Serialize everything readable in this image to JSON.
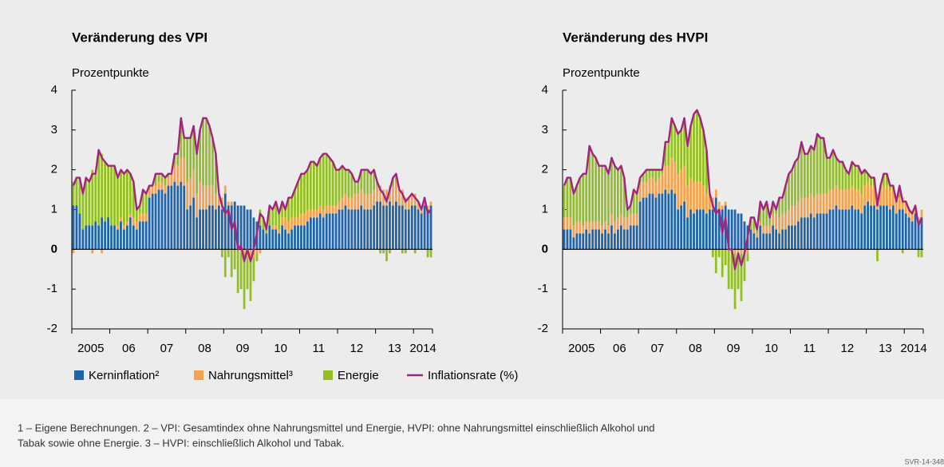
{
  "chart_data": [
    {
      "type": "bar",
      "title": "Veränderung des VPI",
      "ylabel": "Prozentpunkte",
      "xlim": [
        2005,
        2014.5
      ],
      "ylim": [
        -2,
        4
      ],
      "yticks": [
        -2,
        -1,
        0,
        1,
        2,
        3,
        4
      ],
      "xticks": [
        {
          "value": 2005.5,
          "label": "2005"
        },
        {
          "value": 2006.5,
          "label": "06"
        },
        {
          "value": 2007.5,
          "label": "07"
        },
        {
          "value": 2008.5,
          "label": "08"
        },
        {
          "value": 2009.5,
          "label": "09"
        },
        {
          "value": 2010.5,
          "label": "10"
        },
        {
          "value": 2011.5,
          "label": "11"
        },
        {
          "value": 2012.5,
          "label": "12"
        },
        {
          "value": 2013.5,
          "label": "13"
        },
        {
          "value": 2014.25,
          "label": "2014"
        }
      ],
      "series": [
        {
          "name": "Kerninflation²",
          "color": "#1f64a8",
          "values": [
            1.1,
            1.1,
            0.9,
            0.5,
            0.6,
            0.6,
            0.6,
            0.7,
            0.6,
            0.8,
            0.7,
            0.8,
            0.6,
            0.6,
            0.5,
            0.7,
            0.5,
            0.6,
            0.8,
            0.6,
            0.5,
            0.7,
            0.7,
            0.7,
            1.3,
            1.4,
            1.4,
            1.5,
            1.5,
            1.4,
            1.6,
            1.6,
            1.7,
            1.6,
            1.7,
            1.6,
            1.0,
            1.1,
            1.3,
            0.8,
            1.0,
            1.0,
            1.0,
            1.1,
            1.1,
            1.0,
            1.1,
            1.0,
            1.4,
            1.1,
            1.1,
            1.2,
            1.1,
            1.1,
            1.1,
            1.0,
            1.0,
            0.8,
            0.7,
            0.6,
            0.5,
            0.4,
            0.6,
            0.5,
            0.5,
            0.4,
            0.6,
            0.5,
            0.4,
            0.5,
            0.6,
            0.6,
            0.6,
            0.6,
            0.7,
            0.8,
            0.8,
            0.8,
            0.9,
            0.8,
            0.9,
            0.9,
            0.9,
            0.9,
            1.0,
            1.0,
            1.1,
            1.0,
            1.0,
            1.0,
            1.0,
            1.1,
            1.0,
            1.0,
            1.0,
            1.1,
            1.2,
            1.2,
            1.1,
            1.1,
            1.2,
            1.1,
            1.2,
            1.1,
            1.1,
            1.0,
            1.0,
            1.1,
            1.1,
            1.0,
            0.9,
            1.1,
            1.0,
            1.1
          ]
        },
        {
          "name": "Nahrungsmittel³",
          "color": "#f7a24a",
          "values": [
            -0.1,
            0.0,
            0.0,
            0.0,
            0.0,
            0.0,
            -0.1,
            0.0,
            0.0,
            -0.1,
            0.0,
            0.0,
            0.0,
            0.0,
            0.1,
            0.1,
            0.1,
            0.1,
            0.1,
            0.2,
            0.2,
            0.2,
            0.2,
            0.2,
            0.2,
            0.2,
            0.2,
            0.2,
            0.2,
            0.2,
            0.2,
            0.3,
            0.4,
            0.5,
            0.6,
            0.7,
            0.7,
            0.7,
            0.7,
            0.6,
            0.7,
            0.6,
            0.6,
            0.5,
            0.5,
            0.4,
            0.3,
            0.3,
            0.2,
            0.1,
            0.1,
            0.0,
            0.0,
            -0.1,
            -0.1,
            -0.2,
            -0.2,
            -0.2,
            -0.1,
            -0.1,
            0.0,
            0.0,
            0.0,
            0.1,
            0.1,
            0.1,
            0.2,
            0.3,
            0.3,
            0.3,
            0.2,
            0.2,
            0.3,
            0.3,
            0.3,
            0.2,
            0.2,
            0.2,
            0.2,
            0.2,
            0.2,
            0.2,
            0.2,
            0.2,
            0.2,
            0.3,
            0.3,
            0.3,
            0.3,
            0.4,
            0.4,
            0.4,
            0.4,
            0.4,
            0.4,
            0.4,
            0.4,
            0.4,
            0.4,
            0.4,
            0.4,
            0.5,
            0.5,
            0.4,
            0.4,
            0.3,
            0.3,
            0.3,
            0.3,
            0.2,
            0.1,
            0.1,
            0.1,
            0.1
          ]
        },
        {
          "name": "Energie",
          "color": "#92c020",
          "values": [
            0.6,
            0.7,
            0.9,
            0.9,
            1.2,
            1.1,
            1.4,
            1.2,
            1.9,
            1.6,
            1.5,
            1.3,
            1.5,
            1.5,
            1.2,
            1.2,
            1.3,
            1.3,
            1.0,
            0.9,
            0.3,
            0.2,
            0.6,
            0.5,
            0.1,
            0.0,
            0.3,
            0.2,
            0.2,
            0.2,
            0.1,
            0.0,
            0.3,
            0.3,
            1.0,
            0.5,
            1.1,
            1.0,
            1.1,
            1.0,
            1.3,
            1.7,
            1.7,
            1.5,
            1.2,
            1.0,
            0.0,
            -0.2,
            -0.7,
            -0.2,
            -0.7,
            -0.5,
            -1.1,
            -0.9,
            -1.4,
            -0.8,
            -1.1,
            -0.6,
            -0.2,
            0.4,
            0.3,
            0.1,
            0.5,
            0.4,
            0.6,
            0.4,
            0.4,
            0.2,
            0.6,
            0.5,
            0.7,
            0.9,
            1.0,
            1.0,
            1.0,
            1.2,
            1.2,
            1.1,
            1.2,
            1.4,
            1.3,
            1.2,
            1.1,
            0.9,
            0.8,
            0.8,
            0.6,
            0.7,
            0.6,
            0.3,
            0.3,
            0.5,
            0.6,
            0.6,
            0.5,
            0.5,
            0.1,
            -0.1,
            -0.1,
            -0.3,
            -0.1,
            0.2,
            0.2,
            0.0,
            -0.1,
            -0.1,
            0.0,
            0.0,
            -0.1,
            0.0,
            0.0,
            0.1,
            -0.2,
            -0.2
          ]
        },
        {
          "name": "Inflationsrate (%)",
          "type": "line",
          "color": "#a3237f",
          "values": [
            1.6,
            1.8,
            1.8,
            1.4,
            1.8,
            1.7,
            1.9,
            1.9,
            2.5,
            2.3,
            2.2,
            2.1,
            2.1,
            2.1,
            1.8,
            2.0,
            1.9,
            2.0,
            1.9,
            1.7,
            1.0,
            1.1,
            1.5,
            1.4,
            1.6,
            1.6,
            1.9,
            1.9,
            1.9,
            1.8,
            1.9,
            1.9,
            2.4,
            2.4,
            3.3,
            2.8,
            2.8,
            2.8,
            3.1,
            2.4,
            3.0,
            3.3,
            3.3,
            3.1,
            2.8,
            2.4,
            1.4,
            1.1,
            0.9,
            1.0,
            0.5,
            0.7,
            0.0,
            0.1,
            -0.3,
            0.0,
            -0.3,
            0.0,
            0.4,
            0.9,
            0.8,
            0.5,
            1.1,
            1.0,
            1.2,
            0.9,
            1.2,
            1.0,
            1.3,
            1.3,
            1.5,
            1.7,
            1.9,
            1.9,
            2.0,
            2.2,
            2.2,
            2.1,
            2.3,
            2.4,
            2.4,
            2.3,
            2.2,
            2.0,
            2.0,
            2.1,
            2.0,
            2.0,
            1.9,
            1.7,
            1.7,
            2.0,
            2.0,
            2.0,
            1.9,
            2.0,
            1.7,
            1.5,
            1.4,
            1.2,
            1.5,
            1.8,
            1.9,
            1.5,
            1.4,
            1.2,
            1.3,
            1.4,
            1.3,
            1.2,
            1.0,
            1.3,
            0.9,
            1.0
          ]
        }
      ]
    },
    {
      "type": "bar",
      "title": "Veränderung des HVPI",
      "ylabel": "Prozentpunkte",
      "xlim": [
        2005,
        2014.5
      ],
      "ylim": [
        -2,
        4
      ],
      "yticks": [
        -2,
        -1,
        0,
        1,
        2,
        3,
        4
      ],
      "xticks": [
        {
          "value": 2005.5,
          "label": "2005"
        },
        {
          "value": 2006.5,
          "label": "06"
        },
        {
          "value": 2007.5,
          "label": "07"
        },
        {
          "value": 2008.5,
          "label": "08"
        },
        {
          "value": 2009.5,
          "label": "09"
        },
        {
          "value": 2010.5,
          "label": "10"
        },
        {
          "value": 2011.5,
          "label": "11"
        },
        {
          "value": 2012.5,
          "label": "12"
        },
        {
          "value": 2013.5,
          "label": "13"
        },
        {
          "value": 2014.25,
          "label": "2014"
        }
      ],
      "series": [
        {
          "color": "#1f64a8",
          "values": [
            0.5,
            0.5,
            0.5,
            0.3,
            0.4,
            0.4,
            0.4,
            0.5,
            0.4,
            0.5,
            0.5,
            0.5,
            0.4,
            0.5,
            0.4,
            0.6,
            0.4,
            0.5,
            0.6,
            0.5,
            0.5,
            0.6,
            0.6,
            0.6,
            1.2,
            1.3,
            1.3,
            1.4,
            1.4,
            1.3,
            1.4,
            1.4,
            1.5,
            1.4,
            1.5,
            1.4,
            1.0,
            1.1,
            1.2,
            0.8,
            1.0,
            0.9,
            1.0,
            1.0,
            1.0,
            0.9,
            1.0,
            1.0,
            1.3,
            1.0,
            1.0,
            1.1,
            1.0,
            1.0,
            1.0,
            0.9,
            0.9,
            0.7,
            0.6,
            0.5,
            0.4,
            0.3,
            0.6,
            0.4,
            0.4,
            0.4,
            0.6,
            0.5,
            0.4,
            0.5,
            0.5,
            0.6,
            0.6,
            0.6,
            0.7,
            0.8,
            0.8,
            0.8,
            0.9,
            0.8,
            0.9,
            0.9,
            0.9,
            0.9,
            1.0,
            1.0,
            1.1,
            1.0,
            1.0,
            1.0,
            1.0,
            1.1,
            1.0,
            1.0,
            0.9,
            1.1,
            1.2,
            1.1,
            1.1,
            1.0,
            1.1,
            1.1,
            1.1,
            1.0,
            1.1,
            0.9,
            1.0,
            1.0,
            0.9,
            0.8,
            0.7,
            0.9,
            0.7,
            0.8
          ]
        },
        {
          "color": "#f7a24a",
          "values": [
            0.3,
            0.3,
            0.3,
            0.3,
            0.3,
            0.3,
            0.2,
            0.2,
            0.3,
            0.2,
            0.2,
            0.2,
            0.2,
            0.2,
            0.2,
            0.3,
            0.3,
            0.3,
            0.3,
            0.3,
            0.3,
            0.3,
            0.3,
            0.3,
            0.4,
            0.4,
            0.4,
            0.4,
            0.4,
            0.4,
            0.4,
            0.5,
            0.6,
            0.7,
            0.8,
            0.8,
            0.9,
            0.9,
            0.9,
            0.8,
            0.8,
            0.8,
            0.7,
            0.7,
            0.6,
            0.5,
            0.4,
            0.3,
            0.2,
            0.2,
            0.1,
            0.1,
            0.0,
            0.0,
            -0.1,
            -0.1,
            -0.1,
            -0.1,
            -0.1,
            0.0,
            0.1,
            0.1,
            0.1,
            0.2,
            0.2,
            0.2,
            0.3,
            0.4,
            0.4,
            0.4,
            0.4,
            0.4,
            0.5,
            0.5,
            0.5,
            0.5,
            0.5,
            0.5,
            0.5,
            0.5,
            0.5,
            0.5,
            0.5,
            0.5,
            0.5,
            0.5,
            0.5,
            0.5,
            0.5,
            0.5,
            0.5,
            0.5,
            0.5,
            0.5,
            0.5,
            0.5,
            0.5,
            0.5,
            0.5,
            0.4,
            0.4,
            0.5,
            0.5,
            0.5,
            0.4,
            0.3,
            0.3,
            0.3,
            0.3,
            0.2,
            0.2,
            0.2,
            0.1,
            0.2
          ]
        },
        {
          "color": "#92c020",
          "values": [
            0.8,
            1.0,
            1.0,
            0.8,
            0.9,
            1.1,
            1.3,
            1.2,
            1.9,
            1.7,
            1.6,
            1.4,
            1.5,
            1.4,
            1.3,
            1.4,
            1.4,
            1.2,
            1.2,
            1.0,
            0.2,
            0.2,
            0.6,
            0.5,
            0.2,
            0.2,
            0.3,
            0.2,
            0.2,
            0.3,
            0.2,
            0.1,
            0.6,
            0.6,
            1.0,
            0.9,
            1.0,
            1.0,
            1.2,
            1.0,
            1.3,
            1.7,
            1.8,
            1.6,
            1.4,
            1.1,
            0.0,
            -0.2,
            -0.6,
            -0.2,
            -0.7,
            -0.4,
            -1.0,
            -1.0,
            -1.4,
            -0.9,
            -1.2,
            -0.7,
            -0.2,
            0.3,
            0.3,
            0.1,
            0.5,
            0.4,
            0.6,
            0.2,
            0.3,
            0.1,
            0.5,
            0.4,
            0.7,
            0.9,
            0.9,
            1.1,
            1.1,
            1.4,
            1.1,
            1.1,
            1.2,
            1.2,
            1.5,
            1.4,
            1.4,
            0.9,
            0.8,
            1.0,
            0.7,
            0.7,
            0.7,
            0.5,
            0.4,
            0.6,
            0.6,
            0.6,
            0.5,
            0.4,
            0.2,
            0.2,
            0.2,
            -0.3,
            0.1,
            0.3,
            0.3,
            0.1,
            0.1,
            0.0,
            0.3,
            -0.1,
            0.0,
            0.0,
            0.0,
            0.0,
            -0.2,
            -0.2
          ]
        },
        {
          "type": "line",
          "color": "#a3237f",
          "values": [
            1.6,
            1.8,
            1.8,
            1.4,
            1.6,
            1.8,
            1.9,
            1.9,
            2.6,
            2.4,
            2.3,
            2.1,
            2.1,
            2.1,
            1.9,
            2.3,
            2.1,
            2.0,
            2.1,
            1.8,
            1.0,
            1.1,
            1.5,
            1.4,
            1.8,
            1.9,
            2.0,
            2.0,
            2.0,
            2.0,
            2.0,
            2.0,
            2.7,
            2.7,
            3.3,
            3.1,
            2.9,
            3.0,
            3.3,
            2.6,
            3.1,
            3.4,
            3.5,
            3.3,
            3.0,
            2.5,
            1.4,
            1.1,
            0.9,
            1.0,
            0.4,
            0.8,
            0.0,
            0.0,
            -0.5,
            -0.1,
            -0.4,
            -0.1,
            0.3,
            0.8,
            0.8,
            0.5,
            1.2,
            1.0,
            1.2,
            0.8,
            1.2,
            1.0,
            1.3,
            1.3,
            1.6,
            1.9,
            2.0,
            2.2,
            2.3,
            2.7,
            2.4,
            2.4,
            2.6,
            2.5,
            2.9,
            2.8,
            2.8,
            2.3,
            2.3,
            2.5,
            2.3,
            2.2,
            2.2,
            2.0,
            1.9,
            2.2,
            2.1,
            2.1,
            1.9,
            2.0,
            1.9,
            1.8,
            1.8,
            1.1,
            1.6,
            1.9,
            1.9,
            1.6,
            1.6,
            1.2,
            1.6,
            1.2,
            1.2,
            1.0,
            0.9,
            1.1,
            0.6,
            0.8
          ]
        }
      ]
    }
  ],
  "footnotes": [
    "1 – Eigene Berechnungen. 2 – VPI: Gesamtindex ohne Nahrungsmittel und Energie, HVPI: ohne Nahrungsmittel einschließlich Alkohol und",
    "Tabak sowie ohne Energie. 3 – HVPI: einschließlich Alkohol und Tabak."
  ],
  "source": "SVR-14-348"
}
